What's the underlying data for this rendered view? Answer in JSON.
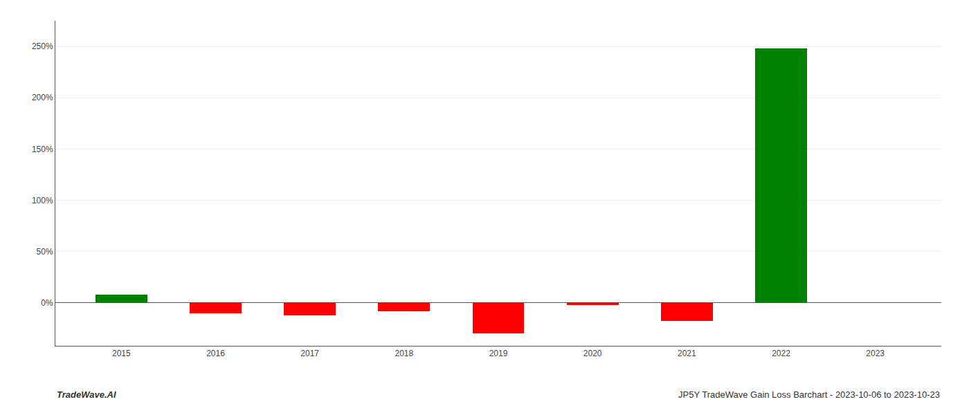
{
  "chart_data": {
    "type": "bar",
    "x": [
      2015,
      2016,
      2017,
      2018,
      2019,
      2020,
      2021,
      2022,
      2023
    ],
    "values": [
      8.0,
      -10.0,
      -12.5,
      -8.0,
      -30.0,
      -2.0,
      -18.0,
      248.0,
      0.0
    ],
    "colors": [
      "#008000",
      "#ff0000",
      "#ff0000",
      "#ff0000",
      "#ff0000",
      "#ff0000",
      "#ff0000",
      "#008000",
      "#ff0000"
    ],
    "xlim": [
      2014.3,
      2023.7
    ],
    "xticks": [
      2015,
      2016,
      2017,
      2018,
      2019,
      2020,
      2021,
      2022,
      2023
    ],
    "ylim": [
      -42,
      275
    ],
    "yticks": [
      {
        "value": 0,
        "label": "0%"
      },
      {
        "value": 50,
        "label": "50%"
      },
      {
        "value": 100,
        "label": "100%"
      },
      {
        "value": 150,
        "label": "150%"
      },
      {
        "value": 200,
        "label": "200%"
      },
      {
        "value": 250,
        "label": "250%"
      }
    ],
    "grid": true,
    "annotations": [
      "TradeWave.AI",
      "JP5Y TradeWave Gain Loss Barchart - 2023-10-06 to 2023-10-23"
    ]
  }
}
